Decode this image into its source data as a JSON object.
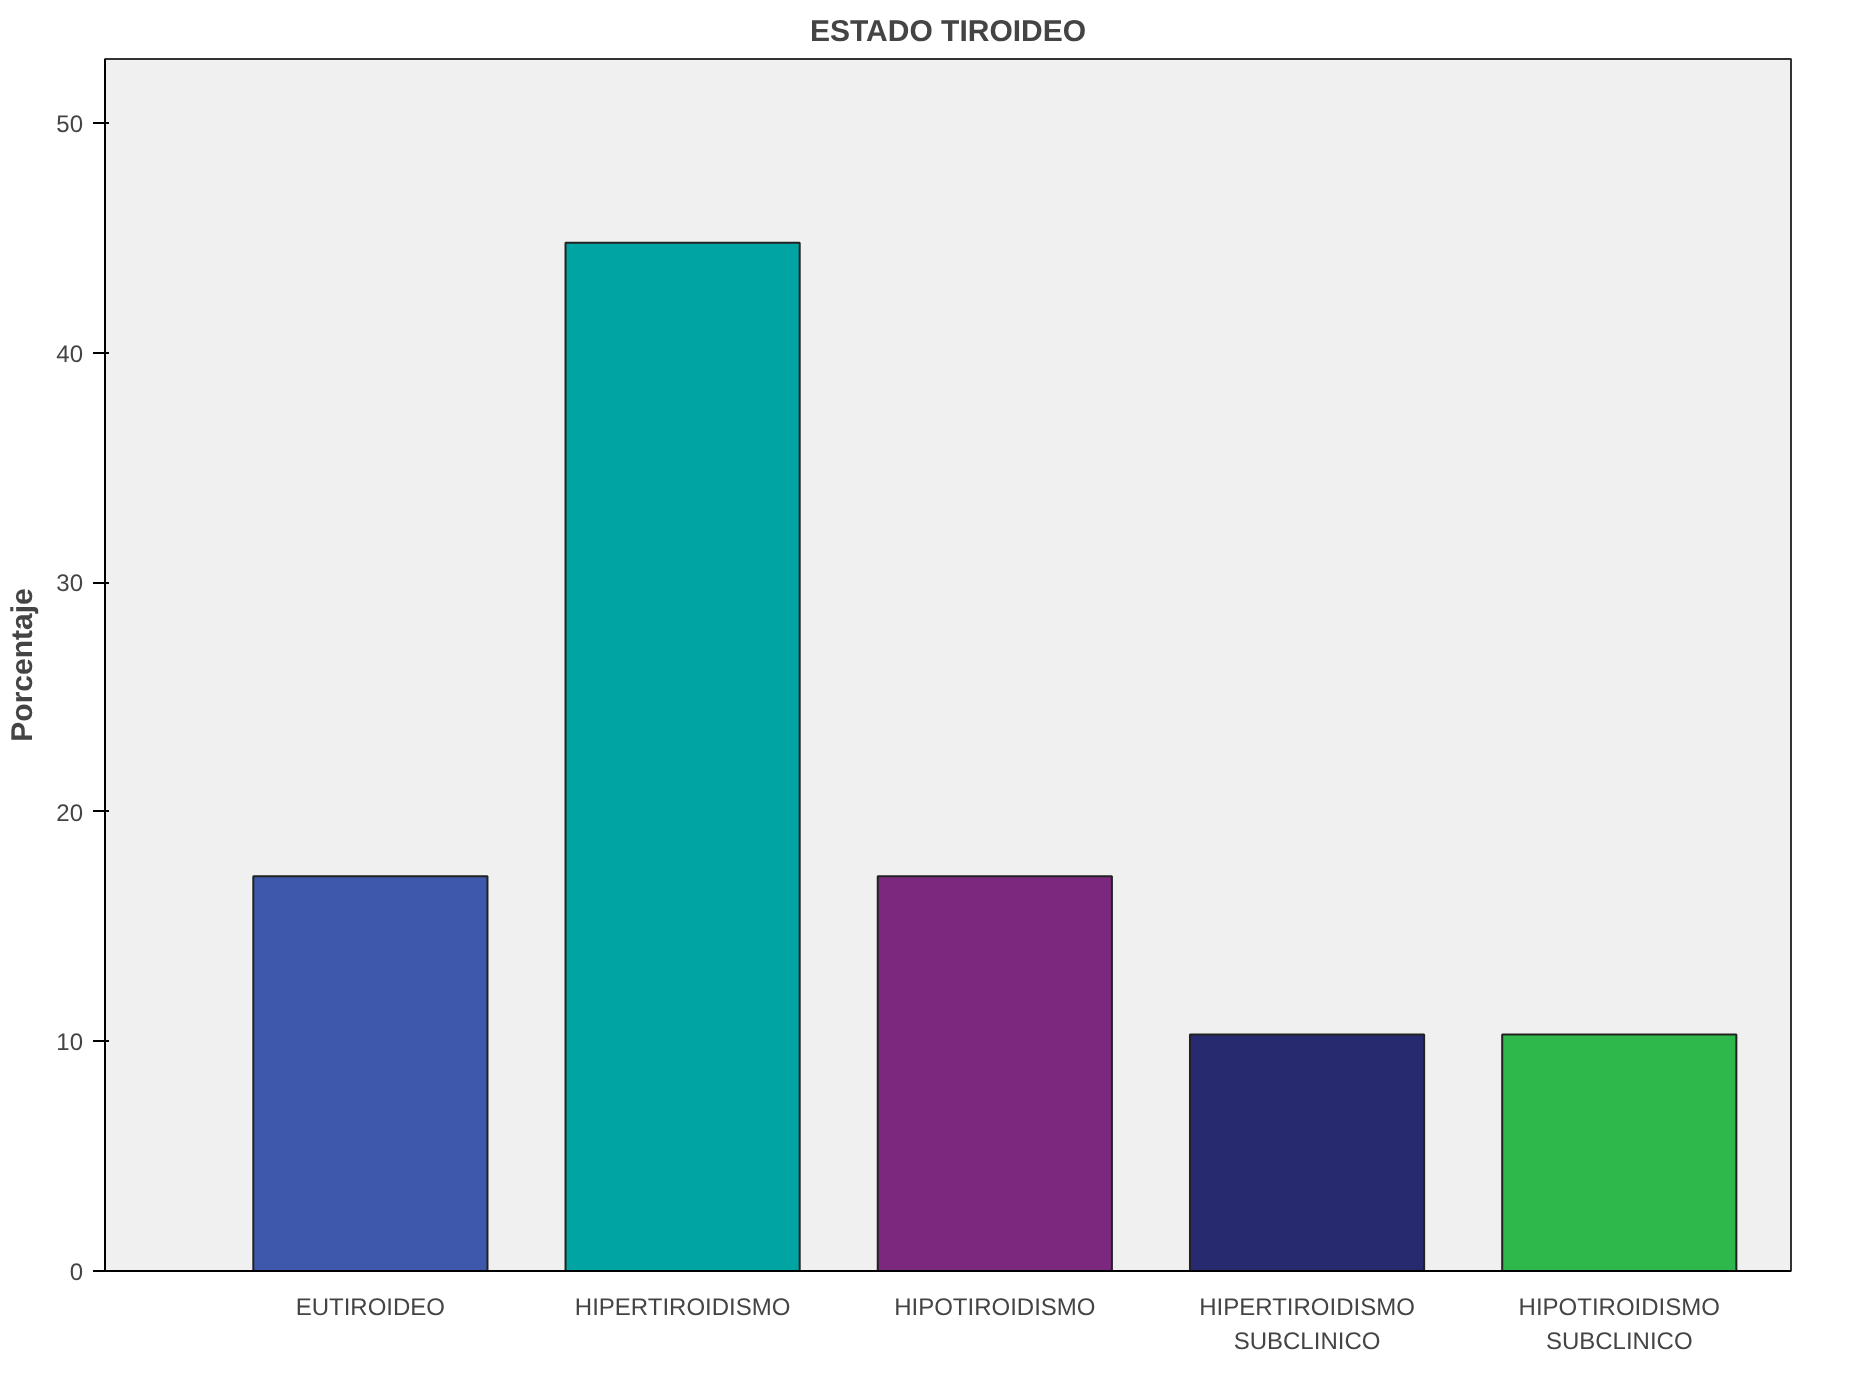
{
  "chart_data": {
    "type": "bar",
    "title": "ESTADO TIROIDEO",
    "ylabel": "Porcentaje",
    "categories": [
      "EUTIROIDEO",
      "HIPERTIROIDISMO",
      "HIPOTIROIDISMO",
      "HIPERTIROIDISMO\nSUBCLINICO",
      "HIPOTIROIDISMO\nSUBCLINICO"
    ],
    "values": [
      17.2,
      44.8,
      17.2,
      10.3,
      10.3
    ],
    "colors": [
      "#3e58ac",
      "#00a5a3",
      "#7b287e",
      "#272a6e",
      "#2eb84b"
    ],
    "ylim": [
      0,
      52.8
    ],
    "yticks": [
      0,
      10,
      20,
      30,
      40,
      50
    ],
    "grid": false
  }
}
